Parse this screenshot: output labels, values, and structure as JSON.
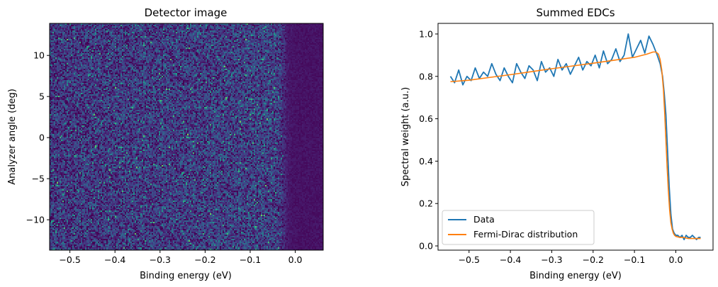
{
  "chart_data": [
    {
      "type": "heatmap",
      "title": "Detector image",
      "xlabel": "Binding energy (eV)",
      "ylabel": "Analyzer angle (deg)",
      "xlim": [
        -0.545,
        0.062
      ],
      "ylim": [
        -13.7,
        13.9
      ],
      "xticks": [
        -0.5,
        -0.4,
        -0.3,
        -0.2,
        -0.1,
        0.0
      ],
      "xtick_labels": [
        "−0.5",
        "−0.4",
        "−0.3",
        "−0.2",
        "−0.1",
        "0.0"
      ],
      "yticks": [
        -10,
        -5,
        0,
        5,
        10
      ],
      "ytick_labels": [
        "−10",
        "−5",
        "0",
        "5",
        "10"
      ],
      "colormap": "viridis",
      "fermi_level_eV": -0.025,
      "description_of_values": "noisy intensity (low–mid, viridis) below E_F, near zero above E_F"
    },
    {
      "type": "line",
      "title": "Summed EDCs",
      "xlabel": "Binding energy (eV)",
      "ylabel": "Spectral weight (a.u.)",
      "xlim": [
        -0.575,
        0.09
      ],
      "ylim": [
        -0.02,
        1.05
      ],
      "xticks": [
        -0.5,
        -0.4,
        -0.3,
        -0.2,
        -0.1,
        0.0
      ],
      "xtick_labels": [
        "−0.5",
        "−0.4",
        "−0.3",
        "−0.2",
        "−0.1",
        "0.0"
      ],
      "yticks": [
        0.0,
        0.2,
        0.4,
        0.6,
        0.8,
        1.0
      ],
      "ytick_labels": [
        "0.0",
        "0.2",
        "0.4",
        "0.6",
        "0.8",
        "1.0"
      ],
      "legend_position": "lower-left",
      "series": [
        {
          "name": "Data",
          "color": "#1f77b4",
          "x": [
            -0.545,
            -0.535,
            -0.525,
            -0.515,
            -0.505,
            -0.495,
            -0.485,
            -0.475,
            -0.465,
            -0.455,
            -0.445,
            -0.435,
            -0.425,
            -0.415,
            -0.405,
            -0.395,
            -0.385,
            -0.375,
            -0.365,
            -0.355,
            -0.345,
            -0.335,
            -0.325,
            -0.315,
            -0.305,
            -0.295,
            -0.285,
            -0.275,
            -0.265,
            -0.255,
            -0.245,
            -0.235,
            -0.225,
            -0.215,
            -0.205,
            -0.195,
            -0.185,
            -0.175,
            -0.165,
            -0.155,
            -0.145,
            -0.135,
            -0.125,
            -0.115,
            -0.105,
            -0.095,
            -0.085,
            -0.075,
            -0.065,
            -0.055,
            -0.045,
            -0.038,
            -0.032,
            -0.028,
            -0.024,
            -0.02,
            -0.016,
            -0.012,
            -0.008,
            -0.004,
            0.0,
            0.005,
            0.01,
            0.015,
            0.02,
            0.025,
            0.03,
            0.035,
            0.04,
            0.045,
            0.05,
            0.055,
            0.06
          ],
          "y": [
            0.8,
            0.77,
            0.83,
            0.76,
            0.8,
            0.78,
            0.84,
            0.79,
            0.82,
            0.8,
            0.86,
            0.81,
            0.78,
            0.84,
            0.8,
            0.77,
            0.86,
            0.82,
            0.79,
            0.85,
            0.83,
            0.78,
            0.87,
            0.82,
            0.84,
            0.8,
            0.88,
            0.83,
            0.86,
            0.81,
            0.85,
            0.89,
            0.83,
            0.87,
            0.85,
            0.9,
            0.84,
            0.92,
            0.86,
            0.88,
            0.93,
            0.87,
            0.9,
            1.0,
            0.89,
            0.93,
            0.97,
            0.91,
            0.99,
            0.95,
            0.9,
            0.86,
            0.8,
            0.72,
            0.62,
            0.45,
            0.28,
            0.15,
            0.08,
            0.06,
            0.05,
            0.05,
            0.04,
            0.05,
            0.03,
            0.05,
            0.04,
            0.04,
            0.05,
            0.04,
            0.03,
            0.04,
            0.04
          ]
        },
        {
          "name": "Fermi-Dirac distribution",
          "color": "#ff7f0e",
          "x": [
            -0.545,
            -0.5,
            -0.45,
            -0.4,
            -0.35,
            -0.3,
            -0.25,
            -0.2,
            -0.15,
            -0.1,
            -0.07,
            -0.055,
            -0.048,
            -0.042,
            -0.038,
            -0.034,
            -0.03,
            -0.027,
            -0.024,
            -0.021,
            -0.018,
            -0.015,
            -0.012,
            -0.009,
            -0.006,
            -0.003,
            0.0,
            0.01,
            0.02,
            0.03,
            0.04,
            0.05,
            0.06
          ],
          "y": [
            0.775,
            0.782,
            0.795,
            0.808,
            0.822,
            0.836,
            0.849,
            0.862,
            0.876,
            0.89,
            0.905,
            0.915,
            0.915,
            0.905,
            0.88,
            0.83,
            0.74,
            0.63,
            0.5,
            0.37,
            0.26,
            0.17,
            0.11,
            0.08,
            0.06,
            0.05,
            0.045,
            0.04,
            0.04,
            0.035,
            0.035,
            0.035,
            0.035
          ]
        }
      ]
    }
  ]
}
